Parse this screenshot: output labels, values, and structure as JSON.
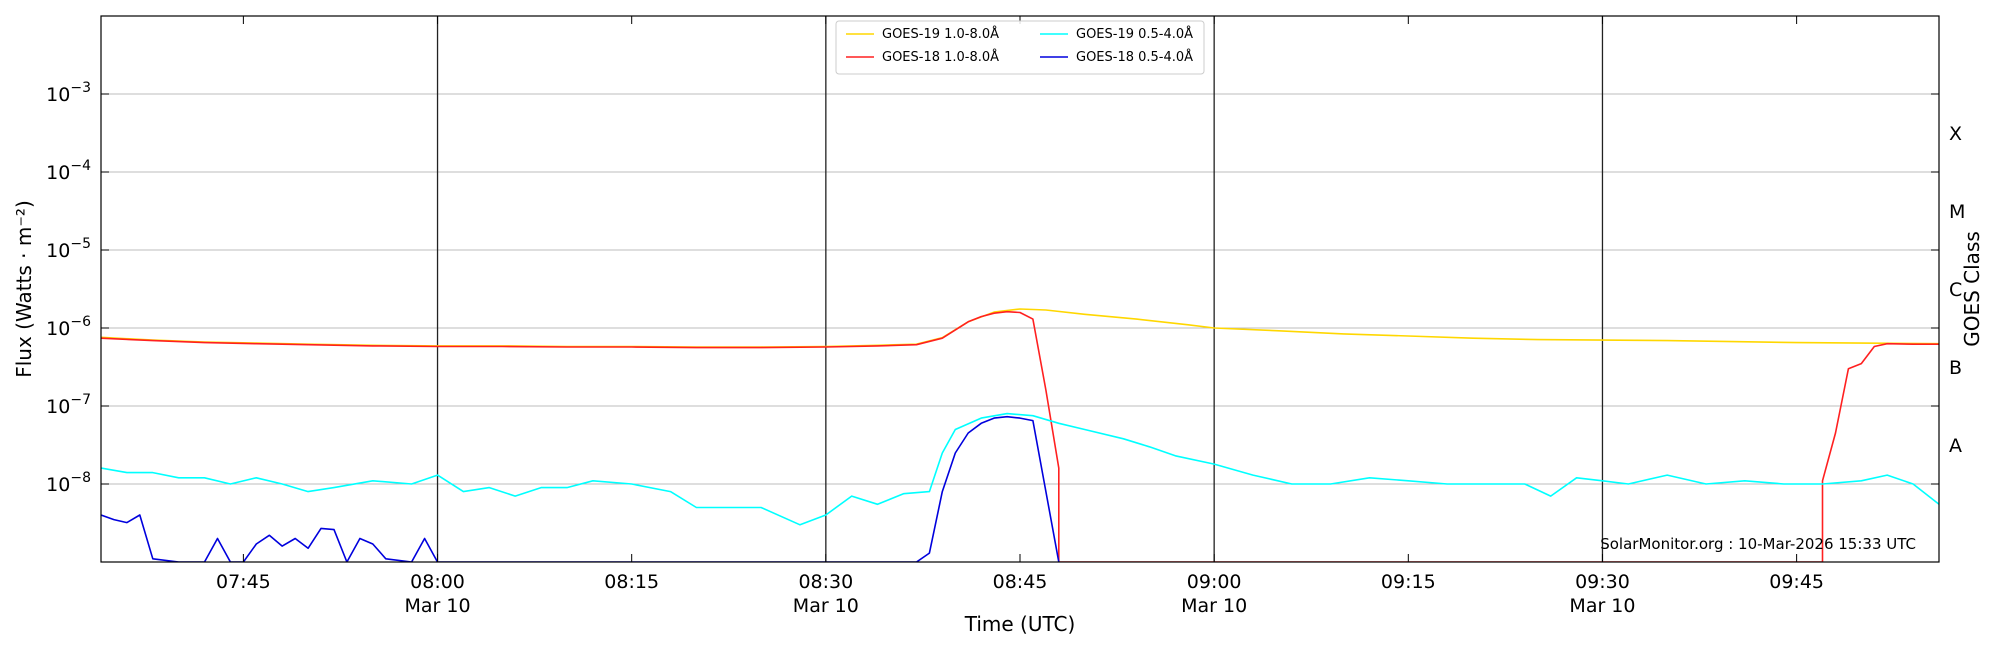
{
  "chart_data": {
    "type": "line",
    "xlabel": "Time (UTC)",
    "ylabel": "Flux (Watts · m⁻²)",
    "right_label": "GOES Class",
    "credit": "SolarMonitor.org : 10-Mar-2026 15:33 UTC",
    "x_range": [
      "07:34",
      "09:56"
    ],
    "ylim": [
      1e-09,
      0.01
    ],
    "yscale": "log",
    "grid": "horizontal",
    "legend_position": "top-center",
    "x_ticks": [
      {
        "time": "07:45",
        "label": "07:45",
        "date": ""
      },
      {
        "time": "08:00",
        "label": "08:00",
        "date": "Mar 10"
      },
      {
        "time": "08:15",
        "label": "08:15",
        "date": ""
      },
      {
        "time": "08:30",
        "label": "08:30",
        "date": "Mar 10"
      },
      {
        "time": "08:45",
        "label": "08:45",
        "date": ""
      },
      {
        "time": "09:00",
        "label": "09:00",
        "date": "Mar 10"
      },
      {
        "time": "09:15",
        "label": "09:15",
        "date": ""
      },
      {
        "time": "09:30",
        "label": "09:30",
        "date": "Mar 10"
      },
      {
        "time": "09:45",
        "label": "09:45",
        "date": ""
      }
    ],
    "day_lines": [
      "08:00",
      "08:30",
      "09:00",
      "09:30"
    ],
    "y_ticks": [
      {
        "value": 1e-08,
        "base": "10",
        "exp": "−8"
      },
      {
        "value": 1e-07,
        "base": "10",
        "exp": "−7"
      },
      {
        "value": 1e-06,
        "base": "10",
        "exp": "−6"
      },
      {
        "value": 1e-05,
        "base": "10",
        "exp": "−5"
      },
      {
        "value": 0.0001,
        "base": "10",
        "exp": "−4"
      },
      {
        "value": 0.001,
        "base": "10",
        "exp": "−3"
      }
    ],
    "goes_classes": [
      {
        "label": "A",
        "value": 3.16e-08
      },
      {
        "label": "B",
        "value": 3.16e-07
      },
      {
        "label": "C",
        "value": 3.16e-06
      },
      {
        "label": "M",
        "value": 3.16e-05
      },
      {
        "label": "X",
        "value": 0.000316
      }
    ],
    "series": [
      {
        "name": "GOES-19 1.0-8.0Å",
        "color": "#FFD700",
        "points": [
          [
            "07:34",
            7.6e-07
          ],
          [
            "07:38",
            7e-07
          ],
          [
            "07:42",
            6.6e-07
          ],
          [
            "07:46",
            6.4e-07
          ],
          [
            "07:50",
            6.2e-07
          ],
          [
            "07:55",
            6e-07
          ],
          [
            "08:00",
            5.9e-07
          ],
          [
            "08:05",
            5.9e-07
          ],
          [
            "08:10",
            5.8e-07
          ],
          [
            "08:15",
            5.8e-07
          ],
          [
            "08:20",
            5.7e-07
          ],
          [
            "08:25",
            5.7e-07
          ],
          [
            "08:30",
            5.8e-07
          ],
          [
            "08:34",
            6e-07
          ],
          [
            "08:37",
            6.2e-07
          ],
          [
            "08:39",
            7.5e-07
          ],
          [
            "08:41",
            1.2e-06
          ],
          [
            "08:43",
            1.6e-06
          ],
          [
            "08:45",
            1.75e-06
          ],
          [
            "08:47",
            1.7e-06
          ],
          [
            "08:50",
            1.5e-06
          ],
          [
            "08:54",
            1.3e-06
          ],
          [
            "08:58",
            1.1e-06
          ],
          [
            "09:00",
            1e-06
          ],
          [
            "09:05",
            9.2e-07
          ],
          [
            "09:10",
            8.4e-07
          ],
          [
            "09:15",
            7.9e-07
          ],
          [
            "09:20",
            7.4e-07
          ],
          [
            "09:25",
            7.1e-07
          ],
          [
            "09:30",
            7e-07
          ],
          [
            "09:35",
            6.9e-07
          ],
          [
            "09:40",
            6.7e-07
          ],
          [
            "09:45",
            6.5e-07
          ],
          [
            "09:50",
            6.4e-07
          ],
          [
            "09:56",
            6.3e-07
          ]
        ]
      },
      {
        "name": "GOES-18 1.0-8.0Å",
        "color": "#FF2020",
        "points": [
          [
            "07:34",
            7.4e-07
          ],
          [
            "07:38",
            6.9e-07
          ],
          [
            "07:42",
            6.5e-07
          ],
          [
            "07:46",
            6.3e-07
          ],
          [
            "07:50",
            6.1e-07
          ],
          [
            "07:55",
            5.9e-07
          ],
          [
            "08:00",
            5.8e-07
          ],
          [
            "08:05",
            5.8e-07
          ],
          [
            "08:10",
            5.7e-07
          ],
          [
            "08:15",
            5.7e-07
          ],
          [
            "08:20",
            5.6e-07
          ],
          [
            "08:25",
            5.6e-07
          ],
          [
            "08:30",
            5.7e-07
          ],
          [
            "08:34",
            5.9e-07
          ],
          [
            "08:37",
            6.1e-07
          ],
          [
            "08:39",
            7.4e-07
          ],
          [
            "08:41",
            1.2e-06
          ],
          [
            "08:42",
            1.4e-06
          ],
          [
            "08:43",
            1.55e-06
          ],
          [
            "08:44",
            1.62e-06
          ],
          [
            "08:45",
            1.58e-06
          ],
          [
            "08:46",
            1.3e-06
          ],
          [
            "08:47",
            1.6e-07
          ],
          [
            "08:48",
            1.6e-08
          ],
          [
            "08:48",
            1e-09
          ],
          [
            "09:47",
            1e-09
          ],
          [
            "09:47",
            1.1e-08
          ],
          [
            "09:48",
            4.5e-08
          ],
          [
            "09:49",
            3e-07
          ],
          [
            "09:50",
            3.5e-07
          ],
          [
            "09:51",
            5.8e-07
          ],
          [
            "09:52",
            6.3e-07
          ],
          [
            "09:54",
            6.2e-07
          ],
          [
            "09:56",
            6.2e-07
          ]
        ]
      },
      {
        "name": "GOES-19 0.5-4.0Å",
        "color": "#00FFFF",
        "points": [
          [
            "07:34",
            1.6e-08
          ],
          [
            "07:36",
            1.4e-08
          ],
          [
            "07:38",
            1.4e-08
          ],
          [
            "07:40",
            1.2e-08
          ],
          [
            "07:42",
            1.2e-08
          ],
          [
            "07:44",
            1e-08
          ],
          [
            "07:46",
            1.2e-08
          ],
          [
            "07:48",
            1e-08
          ],
          [
            "07:50",
            8e-09
          ],
          [
            "07:52",
            9e-09
          ],
          [
            "07:55",
            1.1e-08
          ],
          [
            "07:58",
            1e-08
          ],
          [
            "08:00",
            1.3e-08
          ],
          [
            "08:02",
            8e-09
          ],
          [
            "08:04",
            9e-09
          ],
          [
            "08:06",
            7e-09
          ],
          [
            "08:08",
            9e-09
          ],
          [
            "08:10",
            9e-09
          ],
          [
            "08:12",
            1.1e-08
          ],
          [
            "08:15",
            1e-08
          ],
          [
            "08:18",
            8e-09
          ],
          [
            "08:20",
            5e-09
          ],
          [
            "08:23",
            5e-09
          ],
          [
            "08:25",
            5e-09
          ],
          [
            "08:28",
            3e-09
          ],
          [
            "08:30",
            4e-09
          ],
          [
            "08:32",
            7e-09
          ],
          [
            "08:34",
            5.5e-09
          ],
          [
            "08:36",
            7.5e-09
          ],
          [
            "08:38",
            8e-09
          ],
          [
            "08:39",
            2.5e-08
          ],
          [
            "08:40",
            5e-08
          ],
          [
            "08:42",
            7e-08
          ],
          [
            "08:44",
            8e-08
          ],
          [
            "08:46",
            7.5e-08
          ],
          [
            "08:48",
            6e-08
          ],
          [
            "08:50",
            5e-08
          ],
          [
            "08:53",
            3.8e-08
          ],
          [
            "08:55",
            3e-08
          ],
          [
            "08:57",
            2.3e-08
          ],
          [
            "09:00",
            1.8e-08
          ],
          [
            "09:03",
            1.3e-08
          ],
          [
            "09:06",
            1e-08
          ],
          [
            "09:09",
            1e-08
          ],
          [
            "09:12",
            1.2e-08
          ],
          [
            "09:15",
            1.1e-08
          ],
          [
            "09:18",
            1e-08
          ],
          [
            "09:21",
            1e-08
          ],
          [
            "09:24",
            1e-08
          ],
          [
            "09:26",
            7e-09
          ],
          [
            "09:28",
            1.2e-08
          ],
          [
            "09:30",
            1.1e-08
          ],
          [
            "09:32",
            1e-08
          ],
          [
            "09:35",
            1.3e-08
          ],
          [
            "09:38",
            1e-08
          ],
          [
            "09:41",
            1.1e-08
          ],
          [
            "09:44",
            1e-08
          ],
          [
            "09:47",
            1e-08
          ],
          [
            "09:50",
            1.1e-08
          ],
          [
            "09:52",
            1.3e-08
          ],
          [
            "09:54",
            1e-08
          ],
          [
            "09:56",
            5.5e-09
          ]
        ]
      },
      {
        "name": "GOES-18 0.5-4.0Å",
        "color": "#0000DD",
        "points": [
          [
            "07:34",
            4e-09
          ],
          [
            "07:35",
            3.5e-09
          ],
          [
            "07:36",
            3.2e-09
          ],
          [
            "07:37",
            4e-09
          ],
          [
            "07:38",
            1.1e-09
          ],
          [
            "07:40",
            1e-09
          ],
          [
            "07:42",
            1e-09
          ],
          [
            "07:43",
            2e-09
          ],
          [
            "07:44",
            1e-09
          ],
          [
            "07:45",
            1e-09
          ],
          [
            "07:46",
            1.7e-09
          ],
          [
            "07:47",
            2.2e-09
          ],
          [
            "07:48",
            1.6e-09
          ],
          [
            "07:49",
            2e-09
          ],
          [
            "07:50",
            1.5e-09
          ],
          [
            "07:51",
            2.7e-09
          ],
          [
            "07:52",
            2.6e-09
          ],
          [
            "07:53",
            1e-09
          ],
          [
            "07:54",
            2e-09
          ],
          [
            "07:55",
            1.7e-09
          ],
          [
            "07:56",
            1.1e-09
          ],
          [
            "07:58",
            1e-09
          ],
          [
            "07:59",
            2e-09
          ],
          [
            "08:00",
            1e-09
          ],
          [
            "08:37",
            1e-09
          ],
          [
            "08:38",
            1.3e-09
          ],
          [
            "08:39",
            8e-09
          ],
          [
            "08:40",
            2.5e-08
          ],
          [
            "08:41",
            4.5e-08
          ],
          [
            "08:42",
            6e-08
          ],
          [
            "08:43",
            7e-08
          ],
          [
            "08:44",
            7.3e-08
          ],
          [
            "08:45",
            7e-08
          ],
          [
            "08:46",
            6.5e-08
          ],
          [
            "08:47",
            8e-09
          ],
          [
            "08:48",
            1e-09
          ]
        ]
      }
    ]
  }
}
